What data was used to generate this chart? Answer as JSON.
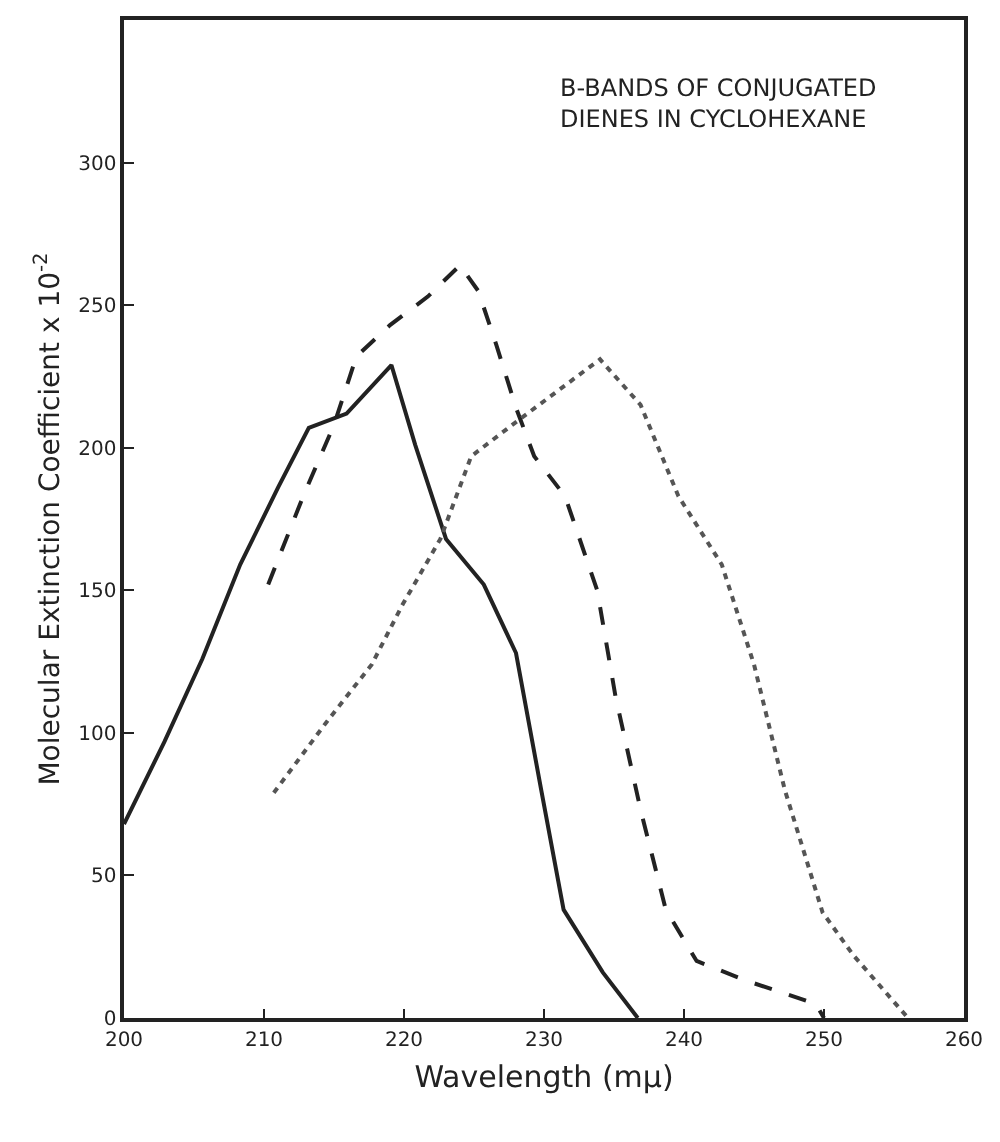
{
  "chart_data": {
    "type": "line",
    "title": "B-BANDS OF CONJUGATED DIENES IN CYCLOHEXANE",
    "xlabel": "Wavelength (mμ)",
    "ylabel": "Molecular Extinction Coefficient x 10$^{-2}$",
    "xlim": [
      200,
      260
    ],
    "ylim": [
      0,
      350
    ],
    "xticks": [
      200,
      210,
      220,
      230,
      240,
      250,
      260
    ],
    "yticks": [
      0,
      50,
      100,
      150,
      200,
      250,
      300
    ],
    "grid": false,
    "marker": "none",
    "series": [
      {
        "color": "#222222",
        "line_style": "solid",
        "x": [
          200,
          202.9,
          205.6,
          208.3,
          211,
          213.2,
          215.9,
          219.1,
          220.8,
          223,
          225.7,
          228,
          229.8,
          231.4,
          234.2,
          236.7
        ],
        "values": [
          68,
          97,
          126,
          159,
          186,
          207,
          212,
          229,
          201,
          168,
          152,
          128,
          80,
          38,
          16,
          0
        ]
      },
      {
        "color": "#222222",
        "line_style": "dashed",
        "x": [
          210.3,
          212.8,
          215,
          216.6,
          219,
          221.7,
          224,
          225.3,
          226.6,
          228,
          229.3,
          231.5,
          233.8,
          235.1,
          236.9,
          238.7,
          240.9,
          244.5,
          249.4,
          250
        ],
        "values": [
          152,
          183,
          208,
          232,
          243,
          253,
          264,
          255,
          236,
          214,
          197,
          183,
          150,
          113,
          73,
          38,
          20,
          13,
          5,
          0
        ]
      },
      {
        "color": "#555555",
        "line_style": "dotted",
        "x": [
          210.7,
          214.5,
          217.7,
          219.9,
          222.6,
          224.8,
          228,
          231,
          234,
          236.9,
          239.6,
          242.7,
          245,
          247.2,
          249.9,
          252.1,
          256
        ],
        "values": [
          79,
          104,
          124,
          145,
          168,
          197,
          209,
          220,
          231,
          215,
          183,
          159,
          124,
          80,
          37,
          22,
          0
        ]
      }
    ]
  }
}
